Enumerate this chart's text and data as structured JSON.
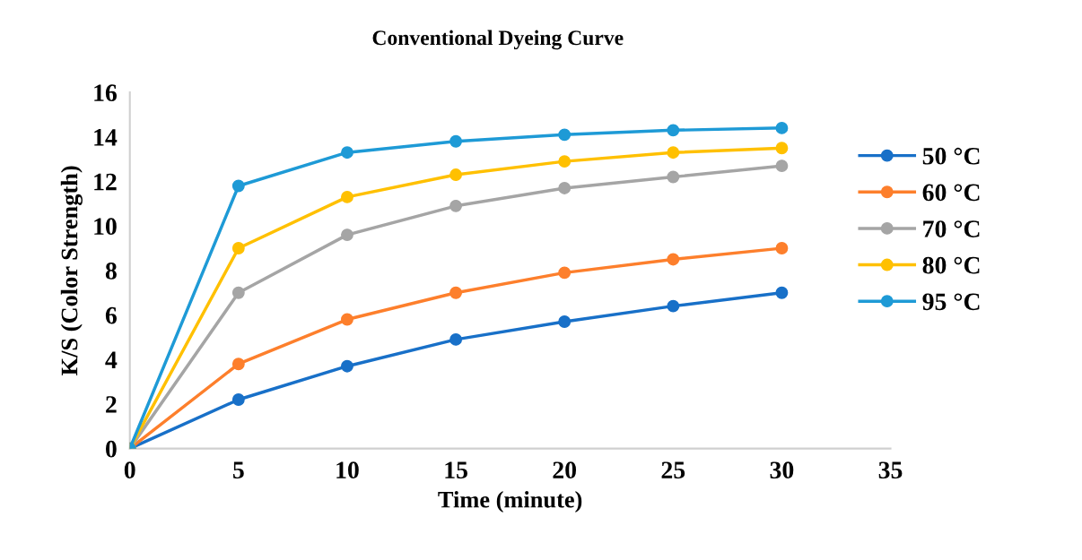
{
  "chart_data": {
    "type": "line",
    "title": "Conventional Dyeing Curve",
    "xlabel": "Time (minute)",
    "ylabel": "K/S (Color Strength)",
    "x": [
      0,
      5,
      10,
      15,
      20,
      25,
      30
    ],
    "series": [
      {
        "name": "50 °C",
        "color": "#1870c8",
        "values": [
          0,
          2.2,
          3.7,
          4.9,
          5.7,
          6.4,
          7.0
        ]
      },
      {
        "name": "60 °C",
        "color": "#fd7f2c",
        "values": [
          0,
          3.8,
          5.8,
          7.0,
          7.9,
          8.5,
          9.0
        ]
      },
      {
        "name": "70 °C",
        "color": "#a5a5a5",
        "values": [
          0,
          7.0,
          9.6,
          10.9,
          11.7,
          12.2,
          12.7
        ]
      },
      {
        "name": "80 °C",
        "color": "#ffc000",
        "values": [
          0,
          9.0,
          11.3,
          12.3,
          12.9,
          13.3,
          13.5
        ]
      },
      {
        "name": "95 °C",
        "color": "#1e9ad6",
        "values": [
          0,
          11.8,
          13.3,
          13.8,
          14.1,
          14.3,
          14.4
        ]
      }
    ],
    "xlim": [
      0,
      35
    ],
    "xticks": [
      0,
      5,
      10,
      15,
      20,
      25,
      30,
      35
    ],
    "ylim": [
      0,
      16
    ],
    "yticks": [
      0,
      2,
      4,
      6,
      8,
      10,
      12,
      14,
      16
    ],
    "marker": "circle",
    "line_style": "solid",
    "grid": false,
    "legend": "right"
  }
}
